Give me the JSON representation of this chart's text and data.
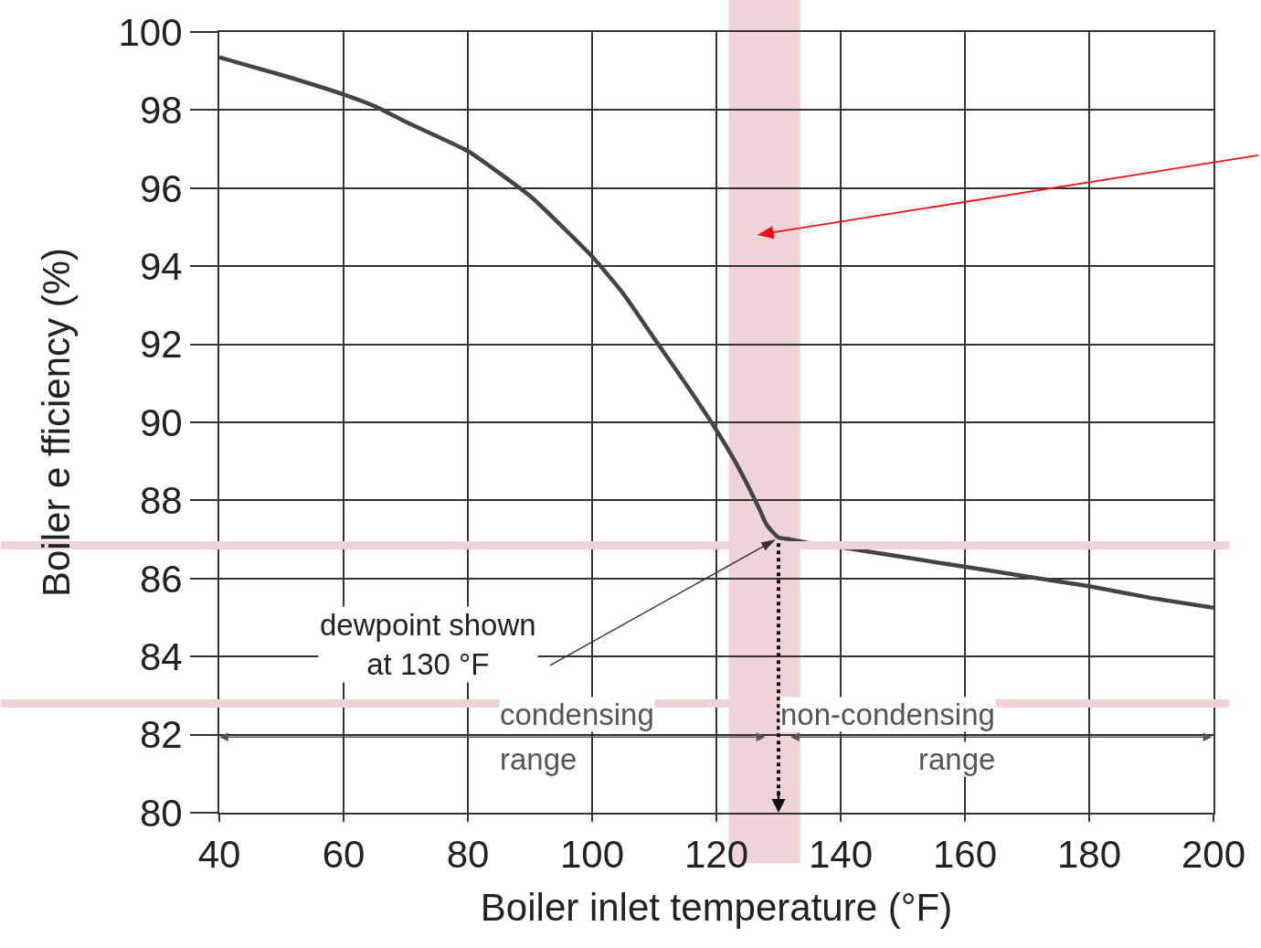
{
  "chart_data": {
    "type": "line",
    "xlabel": "Boiler inlet temperature (°F)",
    "ylabel": "Boiler e fficiency (%)",
    "x": [
      40,
      50,
      60,
      65,
      70,
      80,
      90,
      100,
      105,
      110,
      115,
      120,
      123,
      125,
      127,
      128,
      129,
      130,
      132,
      135,
      140,
      150,
      160,
      170,
      180,
      190,
      200
    ],
    "series": [
      {
        "color": "#444444",
        "values": [
          99.35,
          98.9,
          98.4,
          98.1,
          97.7,
          96.95,
          95.8,
          94.25,
          93.3,
          92.15,
          91.0,
          89.8,
          89.0,
          88.4,
          87.75,
          87.4,
          87.2,
          87.05,
          87.0,
          86.9,
          86.8,
          86.55,
          86.3,
          86.05,
          85.8,
          85.5,
          85.25
        ]
      }
    ],
    "xlim": [
      40,
      200
    ],
    "xticks": [
      40,
      60,
      80,
      100,
      120,
      140,
      160,
      180,
      200
    ],
    "ylim": [
      80,
      100
    ],
    "yticks": [
      80,
      82,
      84,
      86,
      88,
      90,
      92,
      94,
      96,
      98,
      100
    ],
    "grid": true,
    "marker": "none",
    "line_style": "solid",
    "bands": [
      {
        "axis": "x",
        "from": 122,
        "to": 133.5,
        "color": "#efd3d6"
      }
    ],
    "ref_lines": [
      {
        "axis": "y",
        "value": 86.85,
        "color": "#f0d3d6"
      },
      {
        "axis": "y",
        "value": 82.8,
        "color": "#f0d3d6"
      },
      {
        "axis": "x",
        "value": 130,
        "color": "#111111",
        "line_style": "dotted"
      }
    ],
    "annotations": [
      "dewpoint shown\nat 130 °F",
      "condensing\nrange",
      "non-condensing\nrange"
    ]
  }
}
